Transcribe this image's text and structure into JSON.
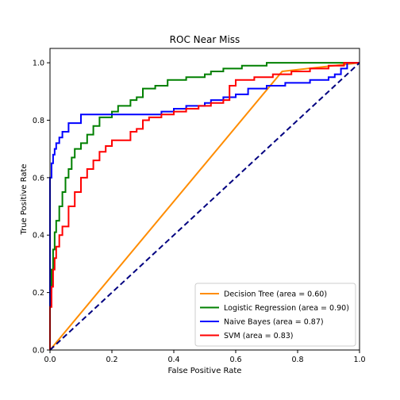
{
  "chart_data": {
    "type": "line",
    "title": "ROC Near Miss",
    "xlabel": "False Positive Rate",
    "ylabel": "True Positive Rate",
    "xlim": [
      0.0,
      1.0
    ],
    "ylim": [
      0.0,
      1.05
    ],
    "x_ticks": [
      "0.0",
      "0.2",
      "0.4",
      "0.6",
      "0.8",
      "1.0"
    ],
    "y_ticks": [
      "0.0",
      "0.2",
      "0.4",
      "0.6",
      "0.8",
      "1.0"
    ],
    "grid": false,
    "legend_position": "lower-right",
    "reference_line": {
      "x": [
        0,
        1
      ],
      "y": [
        0,
        1
      ],
      "color": "#000080",
      "style": "dashed"
    },
    "series": [
      {
        "name": "Decision Tree (area = 0.60)",
        "color": "#ff8c00",
        "x": [
          0.0,
          0.75,
          1.0
        ],
        "y": [
          0.0,
          0.97,
          1.0
        ]
      },
      {
        "name": "Logistic Regression (area = 0.90)",
        "color": "#008000",
        "x": [
          0.0,
          0.0,
          0.005,
          0.005,
          0.01,
          0.01,
          0.015,
          0.015,
          0.02,
          0.02,
          0.03,
          0.03,
          0.04,
          0.04,
          0.05,
          0.05,
          0.06,
          0.06,
          0.07,
          0.07,
          0.08,
          0.08,
          0.1,
          0.1,
          0.12,
          0.12,
          0.14,
          0.14,
          0.16,
          0.16,
          0.2,
          0.2,
          0.22,
          0.22,
          0.26,
          0.26,
          0.28,
          0.28,
          0.3,
          0.3,
          0.34,
          0.34,
          0.38,
          0.38,
          0.44,
          0.44,
          0.5,
          0.5,
          0.52,
          0.52,
          0.56,
          0.56,
          0.62,
          0.62,
          0.7,
          0.7,
          0.96,
          0.96,
          1.0
        ],
        "y": [
          0.0,
          0.2,
          0.2,
          0.28,
          0.28,
          0.35,
          0.35,
          0.41,
          0.41,
          0.45,
          0.45,
          0.5,
          0.5,
          0.55,
          0.55,
          0.6,
          0.6,
          0.63,
          0.63,
          0.67,
          0.67,
          0.7,
          0.7,
          0.72,
          0.72,
          0.75,
          0.75,
          0.78,
          0.78,
          0.81,
          0.81,
          0.83,
          0.83,
          0.85,
          0.85,
          0.87,
          0.87,
          0.88,
          0.88,
          0.91,
          0.91,
          0.92,
          0.92,
          0.94,
          0.94,
          0.95,
          0.95,
          0.96,
          0.96,
          0.97,
          0.97,
          0.98,
          0.98,
          0.99,
          0.99,
          1.0,
          1.0,
          1.0,
          1.0
        ]
      },
      {
        "name": "Naive Bayes (area = 0.87)",
        "color": "#0000ff",
        "x": [
          0.0,
          0.0,
          0.005,
          0.005,
          0.01,
          0.01,
          0.015,
          0.015,
          0.02,
          0.02,
          0.03,
          0.03,
          0.04,
          0.04,
          0.06,
          0.06,
          0.1,
          0.1,
          0.36,
          0.36,
          0.4,
          0.4,
          0.44,
          0.44,
          0.5,
          0.5,
          0.52,
          0.52,
          0.56,
          0.56,
          0.6,
          0.6,
          0.64,
          0.64,
          0.7,
          0.7,
          0.76,
          0.76,
          0.84,
          0.84,
          0.9,
          0.9,
          0.92,
          0.92,
          0.94,
          0.94,
          0.96,
          0.96,
          1.0
        ],
        "y": [
          0.0,
          0.6,
          0.6,
          0.65,
          0.65,
          0.68,
          0.68,
          0.7,
          0.7,
          0.72,
          0.72,
          0.74,
          0.74,
          0.76,
          0.76,
          0.79,
          0.79,
          0.82,
          0.82,
          0.83,
          0.83,
          0.84,
          0.84,
          0.85,
          0.85,
          0.86,
          0.86,
          0.87,
          0.87,
          0.88,
          0.88,
          0.89,
          0.89,
          0.91,
          0.91,
          0.92,
          0.92,
          0.93,
          0.93,
          0.94,
          0.94,
          0.95,
          0.95,
          0.96,
          0.96,
          0.98,
          0.98,
          1.0,
          1.0
        ]
      },
      {
        "name": "SVM (area = 0.83)",
        "color": "#ff0000",
        "x": [
          0.0,
          0.0,
          0.005,
          0.005,
          0.01,
          0.01,
          0.015,
          0.015,
          0.02,
          0.02,
          0.03,
          0.03,
          0.04,
          0.04,
          0.06,
          0.06,
          0.08,
          0.08,
          0.1,
          0.1,
          0.12,
          0.12,
          0.14,
          0.14,
          0.16,
          0.16,
          0.18,
          0.18,
          0.2,
          0.2,
          0.26,
          0.26,
          0.28,
          0.28,
          0.3,
          0.3,
          0.32,
          0.32,
          0.36,
          0.36,
          0.4,
          0.4,
          0.44,
          0.44,
          0.48,
          0.48,
          0.52,
          0.52,
          0.56,
          0.56,
          0.58,
          0.58,
          0.6,
          0.6,
          0.66,
          0.66,
          0.72,
          0.72,
          0.78,
          0.78,
          0.84,
          0.84,
          0.9,
          0.9,
          0.95,
          0.95,
          1.0
        ],
        "y": [
          0.0,
          0.15,
          0.15,
          0.22,
          0.22,
          0.28,
          0.28,
          0.32,
          0.32,
          0.36,
          0.36,
          0.4,
          0.4,
          0.43,
          0.43,
          0.5,
          0.5,
          0.55,
          0.55,
          0.6,
          0.6,
          0.63,
          0.63,
          0.66,
          0.66,
          0.69,
          0.69,
          0.71,
          0.71,
          0.73,
          0.73,
          0.76,
          0.76,
          0.77,
          0.77,
          0.8,
          0.8,
          0.81,
          0.81,
          0.82,
          0.82,
          0.83,
          0.83,
          0.84,
          0.84,
          0.85,
          0.85,
          0.86,
          0.86,
          0.87,
          0.87,
          0.92,
          0.92,
          0.94,
          0.94,
          0.95,
          0.95,
          0.96,
          0.96,
          0.97,
          0.97,
          0.98,
          0.98,
          0.99,
          0.99,
          1.0,
          1.0
        ]
      }
    ]
  }
}
